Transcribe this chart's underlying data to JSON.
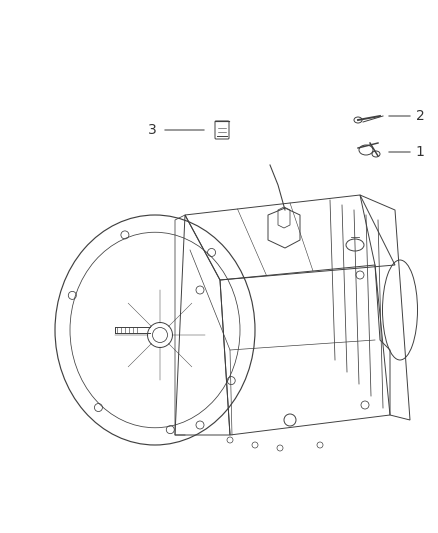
{
  "background_color": "#ffffff",
  "title": "",
  "figsize": [
    4.38,
    5.33
  ],
  "dpi": 100,
  "label_1": "1",
  "label_2": "2",
  "label_3": "3",
  "line_color": "#404040",
  "part_color": "#606060",
  "transmission_color": "#555555",
  "label_font_size": 10,
  "callout_line_color": "#333333"
}
